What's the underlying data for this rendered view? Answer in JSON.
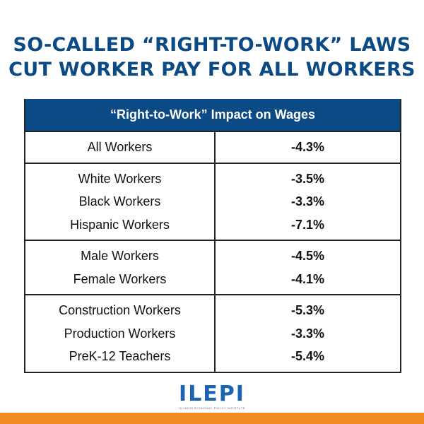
{
  "title": {
    "line1": "SO-CALLED “RIGHT-TO-WORK” LAWS",
    "line2": "CUT WORKER PAY FOR ALL WORKERS"
  },
  "chart_data": {
    "type": "table",
    "header": "“Right-to-Work” Impact on Wages",
    "groups": [
      {
        "rows": [
          {
            "label": "All Workers",
            "value": "-4.3%"
          }
        ]
      },
      {
        "rows": [
          {
            "label": "White Workers",
            "value": "-3.5%"
          },
          {
            "label": "Black Workers",
            "value": "-3.3%"
          },
          {
            "label": "Hispanic Workers",
            "value": "-7.1%"
          }
        ]
      },
      {
        "rows": [
          {
            "label": "Male Workers",
            "value": "-4.5%"
          },
          {
            "label": "Female Workers",
            "value": "-4.1%"
          }
        ]
      },
      {
        "rows": [
          {
            "label": "Construction Workers",
            "value": "-5.3%"
          },
          {
            "label": "Production Workers",
            "value": "-3.3%"
          },
          {
            "label": "PreK-12 Teachers",
            "value": "-5.4%"
          }
        ]
      }
    ]
  },
  "logo": {
    "name": "ILEPI",
    "subtitle": "ILLINOIS ECONOMIC POLICY INSTITUTE"
  },
  "colors": {
    "title": "#0b4a85",
    "header_bg": "#0b4a85",
    "logo": "#1b64b3",
    "footer_bar": "#f28a22"
  }
}
